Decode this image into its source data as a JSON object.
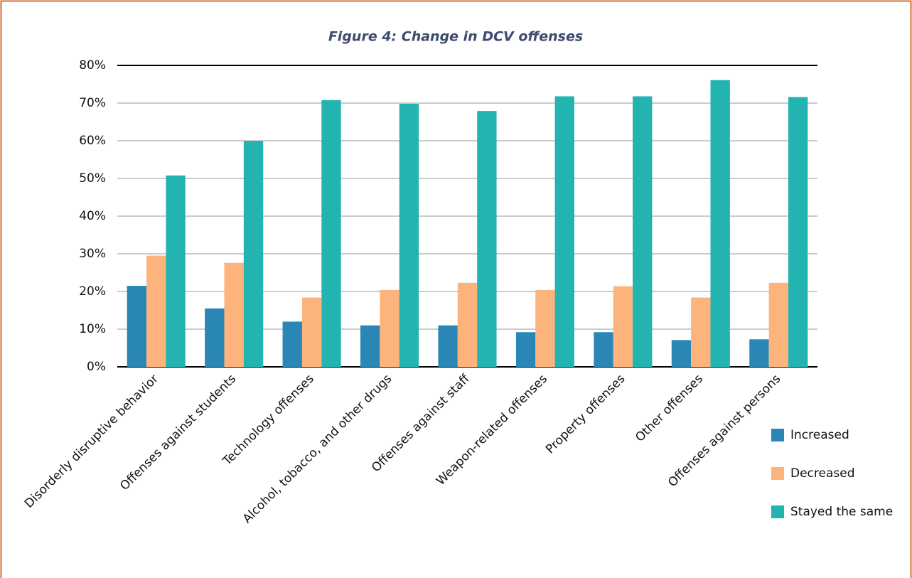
{
  "chart_data": {
    "type": "bar",
    "title": "Figure 4: Change in DCV offenses",
    "categories": [
      "Disorderly disruptive behavior",
      "Offenses against students",
      "Technology offenses",
      "Alcohol, tobacco, and other drugs",
      "Offenses against staff",
      "Weapon-related offenses",
      "Property offenses",
      "Other offenses",
      "Offenses against persons"
    ],
    "series": [
      {
        "name": "Increased",
        "color": "#2a86b4",
        "values": [
          21.5,
          15.5,
          12,
          11,
          11,
          9.2,
          9.2,
          7.1,
          7.3
        ]
      },
      {
        "name": "Decreased",
        "color": "#fdb37c",
        "values": [
          29.5,
          27.6,
          18.4,
          20.4,
          22.3,
          20.4,
          21.4,
          18.4,
          22.3
        ]
      },
      {
        "name": "Stayed the same",
        "color": "#23b3b0",
        "values": [
          50.8,
          59.9,
          70.8,
          69.8,
          67.9,
          71.8,
          71.8,
          76.1,
          71.6
        ]
      }
    ],
    "ylim": [
      0,
      80
    ],
    "yticks": [
      {
        "value": 0,
        "label": "0%"
      },
      {
        "value": 10,
        "label": "10%"
      },
      {
        "value": 20,
        "label": "20%"
      },
      {
        "value": 30,
        "label": "30%"
      },
      {
        "value": 40,
        "label": "40%"
      },
      {
        "value": 50,
        "label": "50%"
      },
      {
        "value": 60,
        "label": "60%"
      },
      {
        "value": 70,
        "label": "70%"
      },
      {
        "value": 80,
        "label": "80%"
      }
    ],
    "grid": true,
    "legend": "lower right"
  }
}
